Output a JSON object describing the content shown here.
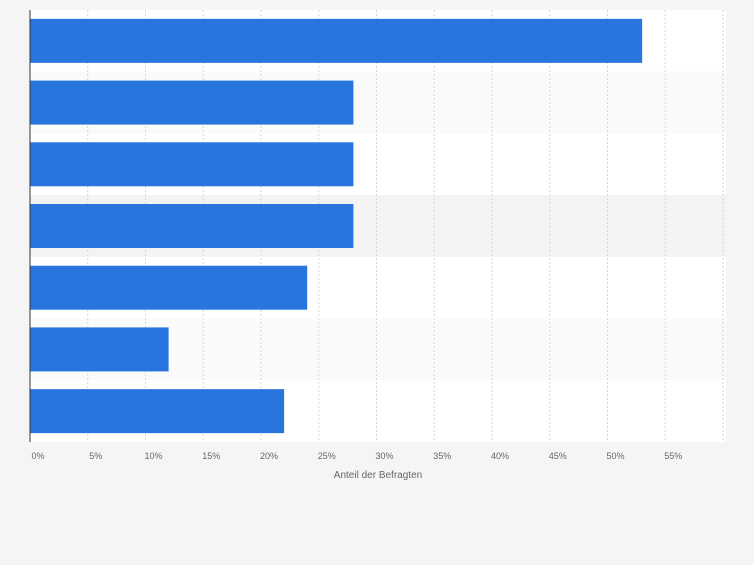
{
  "chart_data": {
    "type": "bar",
    "orientation": "horizontal",
    "categories": [
      "",
      "",
      "",
      "",
      "",
      "",
      ""
    ],
    "values": [
      53,
      28,
      28,
      28,
      24,
      12,
      22
    ],
    "xlabel": "Anteil der Befragten",
    "ylabel": "",
    "xlim": [
      0,
      60
    ],
    "xticks": [
      0,
      5,
      10,
      15,
      20,
      25,
      30,
      35,
      40,
      45,
      50,
      55
    ],
    "tick_labels": [
      "0%",
      "5%",
      "10%",
      "15%",
      "20%",
      "25%",
      "30%",
      "35%",
      "40%",
      "45%",
      "50%",
      "55%"
    ],
    "grid": true,
    "bar_color": "#2876dd"
  }
}
